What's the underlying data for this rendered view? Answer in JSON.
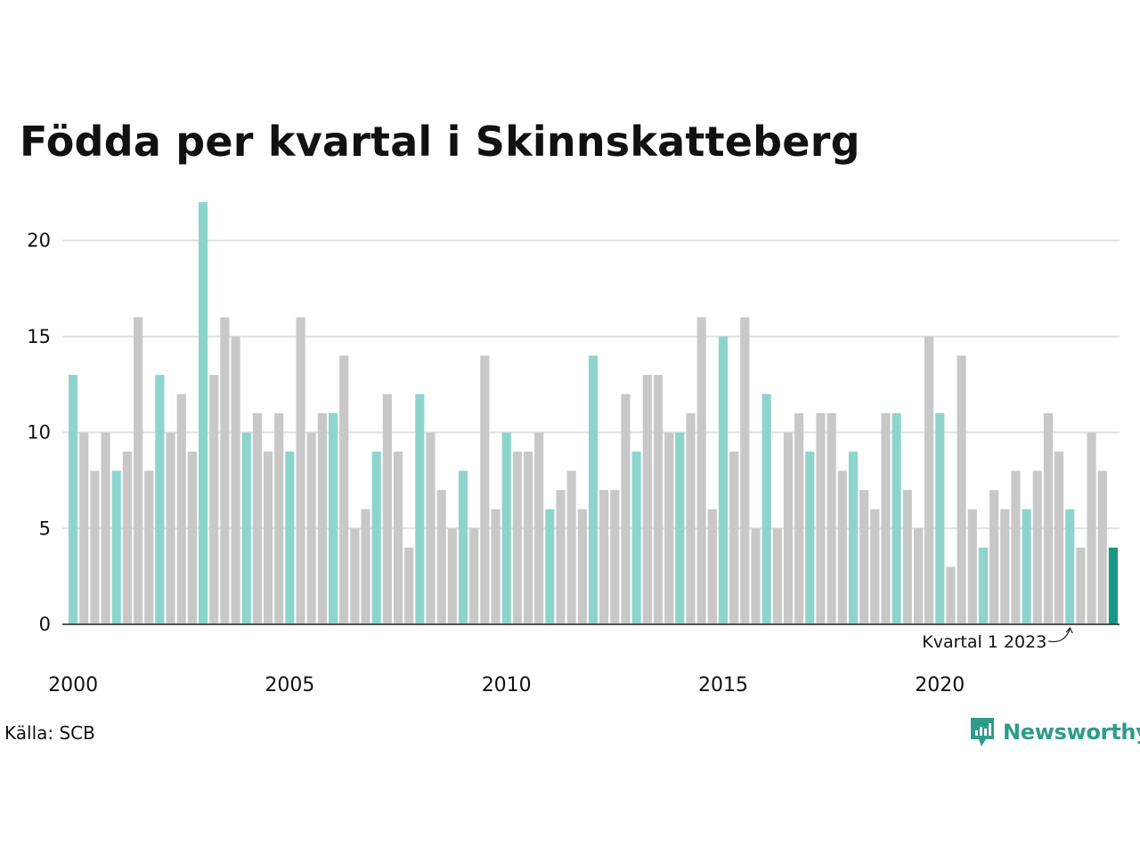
{
  "title": "Födda per kvartal i Skinnskatteberg",
  "source": "Källa: SCB",
  "brand": {
    "name": "Newsworthy",
    "icon": "newsworthy-logo-icon"
  },
  "colors": {
    "q1": "#8dd5cc",
    "other": "#c8c8c8",
    "highlight": "#1a9883",
    "grid": "#e2e2e2",
    "axis": "#222222"
  },
  "chart_data": {
    "type": "bar",
    "title": "Födda per kvartal i Skinnskatteberg",
    "xlabel": "",
    "ylabel": "",
    "ylim": [
      0,
      22
    ],
    "yticks": [
      0,
      5,
      10,
      15,
      20
    ],
    "xticks": [
      "2000",
      "2005",
      "2010",
      "2015",
      "2020"
    ],
    "start": "2000 Q1",
    "annotation": {
      "text": "Kvartal 1 2023",
      "period": "2023 Q1"
    },
    "grid": true,
    "legend": "none",
    "values": [
      13,
      10,
      8,
      10,
      8,
      9,
      16,
      8,
      13,
      10,
      12,
      9,
      22,
      13,
      16,
      15,
      10,
      11,
      9,
      11,
      9,
      16,
      10,
      11,
      11,
      14,
      5,
      6,
      9,
      12,
      9,
      4,
      12,
      10,
      7,
      5,
      8,
      5,
      14,
      6,
      10,
      9,
      9,
      10,
      6,
      7,
      8,
      6,
      14,
      7,
      7,
      12,
      9,
      13,
      13,
      10,
      10,
      11,
      16,
      6,
      15,
      9,
      16,
      5,
      12,
      5,
      10,
      11,
      9,
      11,
      11,
      8,
      9,
      7,
      6,
      11,
      11,
      7,
      5,
      15,
      11,
      3,
      14,
      6,
      4,
      7,
      6,
      8,
      6,
      8,
      11,
      9,
      6,
      4,
      10,
      8,
      4
    ]
  }
}
